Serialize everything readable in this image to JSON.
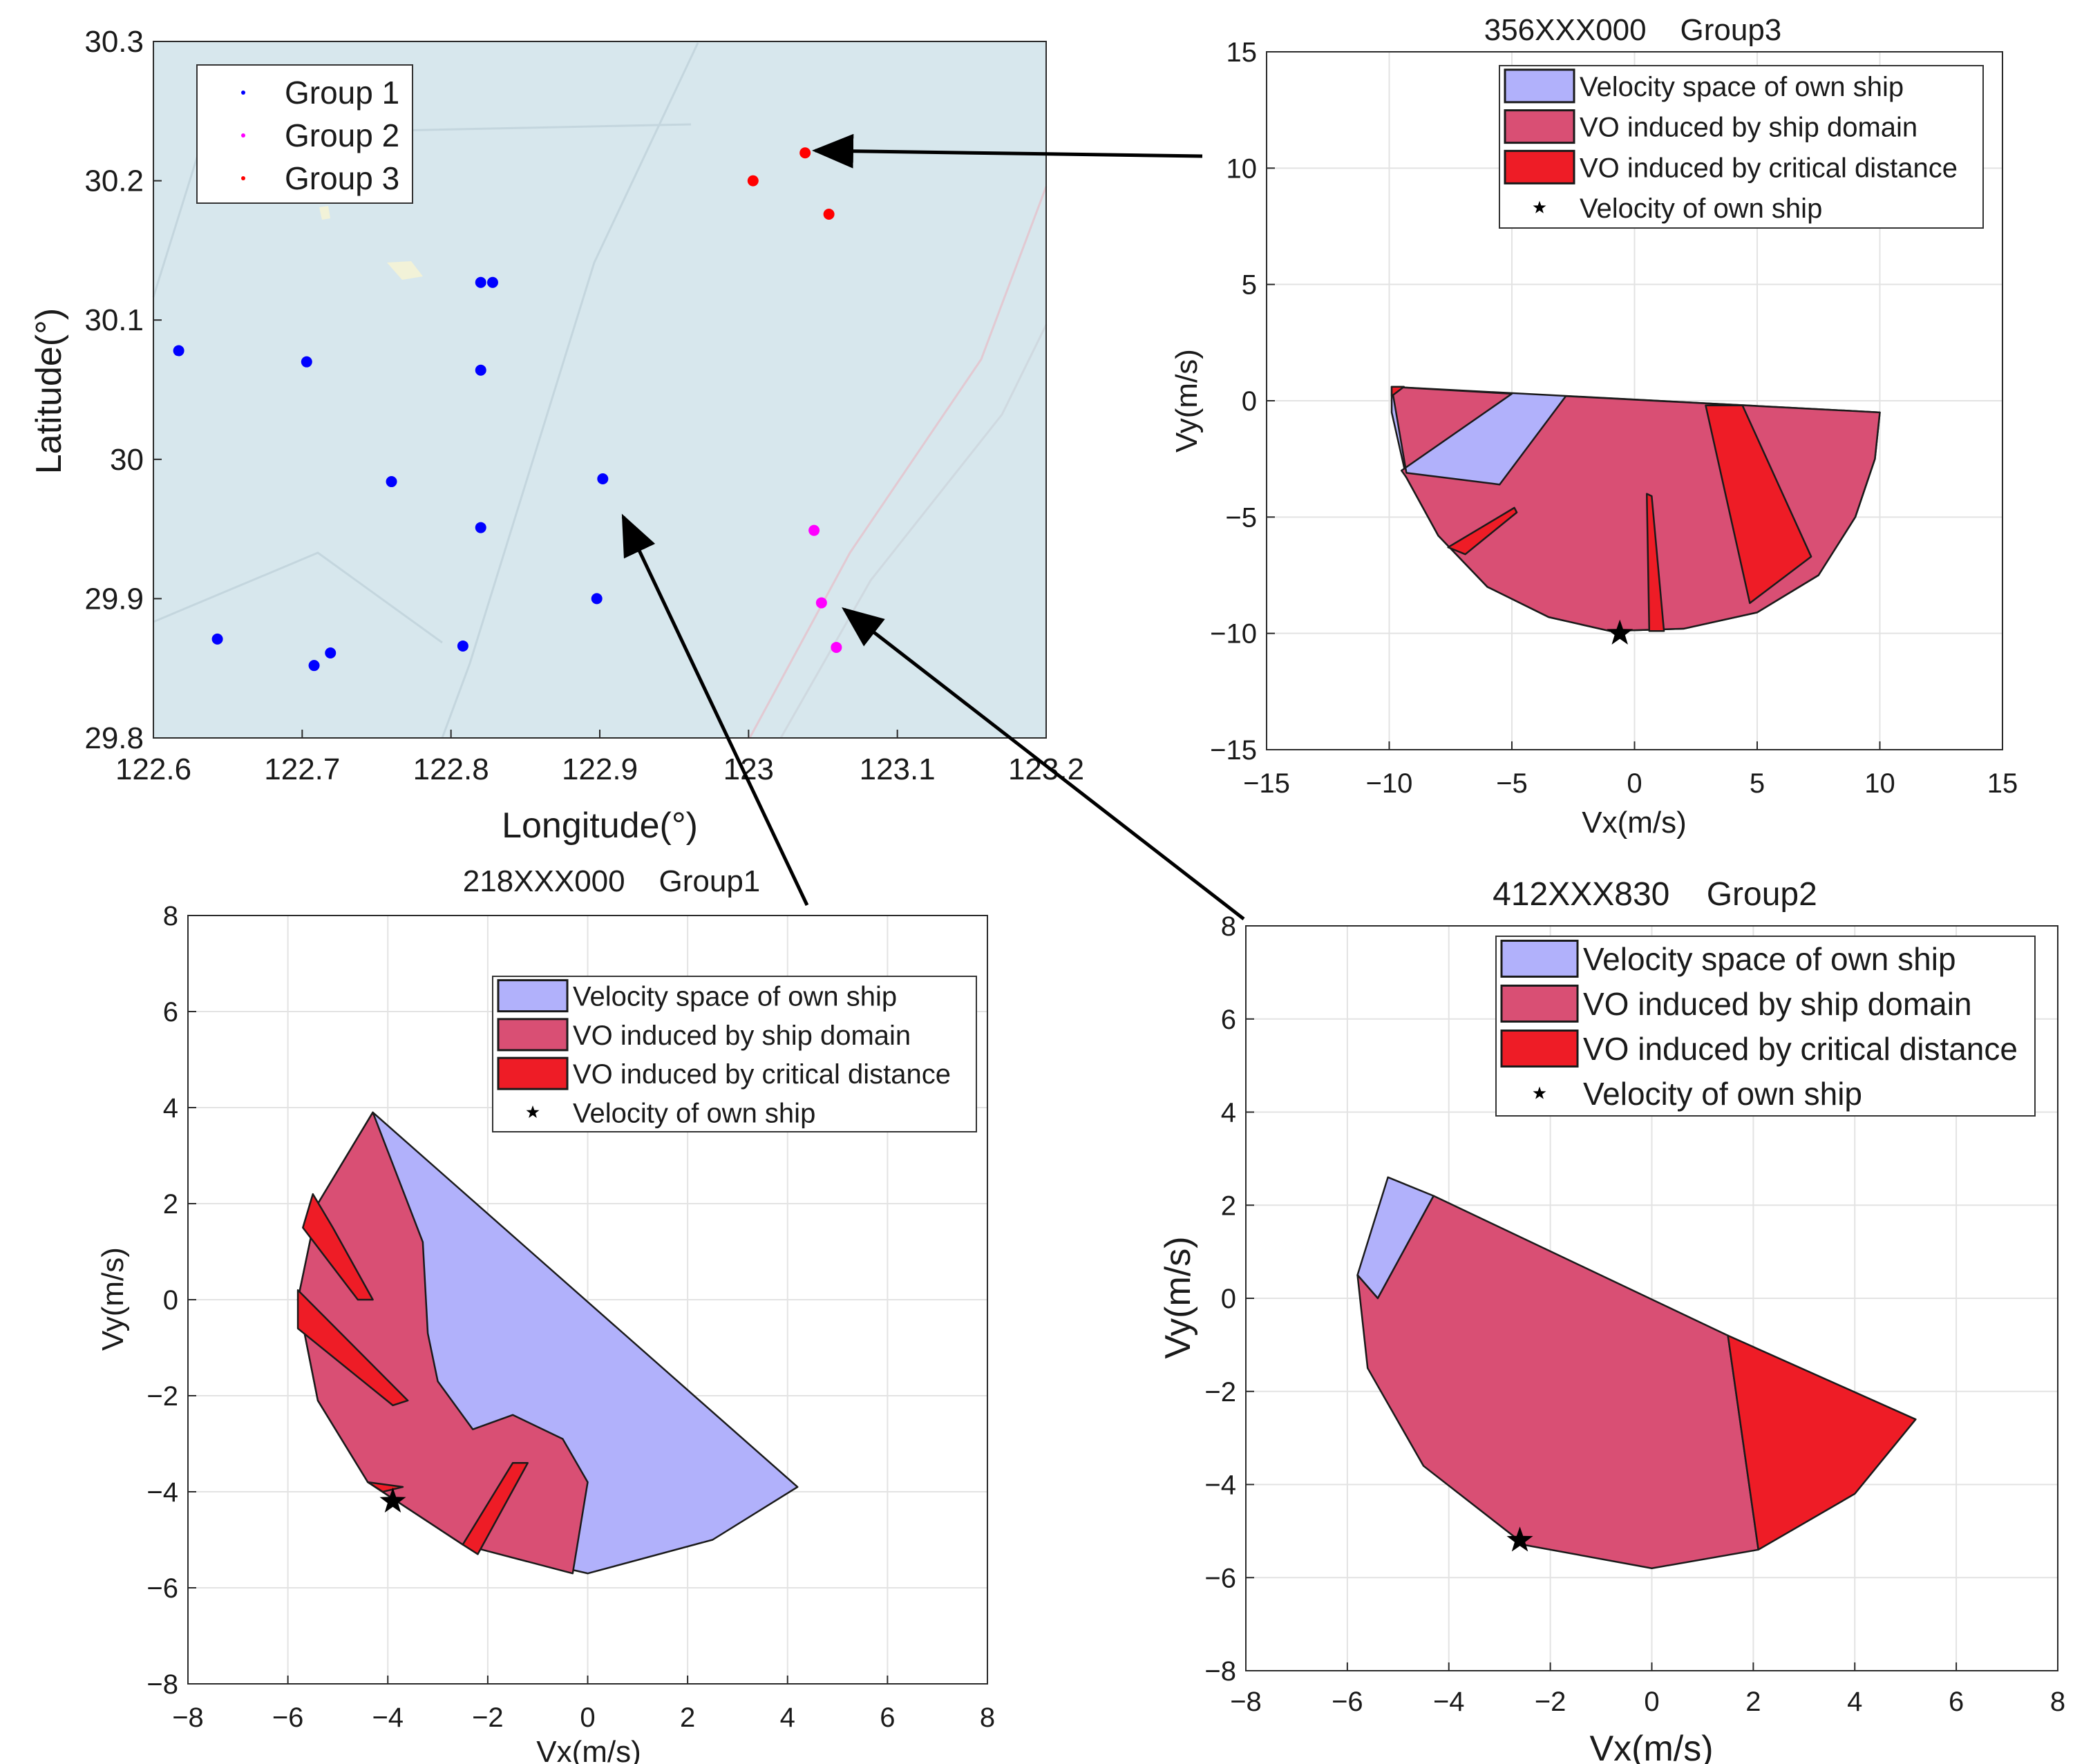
{
  "chart_data": [
    {
      "type": "scatter",
      "id": "map",
      "title": "",
      "xlabel": "Longitude(°)",
      "ylabel": "Latitude(°)",
      "xlim": [
        122.6,
        123.2
      ],
      "ylim": [
        29.8,
        30.3
      ],
      "xticks": [
        "122.6",
        "122.7",
        "122.8",
        "122.9",
        "123",
        "123.1",
        "123.2"
      ],
      "yticks": [
        "29.8",
        "29.9",
        "30",
        "30.1",
        "30.2",
        "30.3"
      ],
      "legend": {
        "position": "top-left"
      },
      "series": [
        {
          "name": "Group 1",
          "color": "#0000ff",
          "points": [
            [
              122.617,
              30.078
            ],
            [
              122.703,
              30.07
            ],
            [
              122.82,
              30.127
            ],
            [
              122.828,
              30.127
            ],
            [
              122.82,
              30.064
            ],
            [
              122.76,
              29.984
            ],
            [
              122.82,
              29.951
            ],
            [
              122.902,
              29.986
            ],
            [
              122.898,
              29.9
            ],
            [
              122.643,
              29.871
            ],
            [
              122.708,
              29.852
            ],
            [
              122.719,
              29.861
            ],
            [
              122.808,
              29.866
            ]
          ]
        },
        {
          "name": "Group 2",
          "color": "#ff00ff",
          "points": [
            [
              123.044,
              29.949
            ],
            [
              123.049,
              29.897
            ],
            [
              123.059,
              29.865
            ]
          ]
        },
        {
          "name": "Group 3",
          "color": "#ff0000",
          "points": [
            [
              123.038,
              30.22
            ],
            [
              123.003,
              30.2
            ],
            [
              123.054,
              30.176
            ]
          ]
        }
      ]
    },
    {
      "type": "area",
      "id": "group3",
      "title": "356XXX000    Group3",
      "xlabel": "Vx(m/s)",
      "ylabel": "Vy(m/s)",
      "xlim": [
        -15,
        15
      ],
      "ylim": [
        -15,
        15
      ],
      "xticks": [
        "−15",
        "−10",
        "−5",
        "0",
        "5",
        "10",
        "15"
      ],
      "yticks": [
        "−15",
        "−10",
        "−5",
        "0",
        "5",
        "10",
        "15"
      ],
      "legend": {
        "position": "top-right",
        "entries": [
          "Velocity space of own ship",
          "VO induced by ship domain",
          "VO induced by critical distance",
          "Velocity of own ship"
        ]
      },
      "regions": [
        {
          "name": "Velocity space of own ship",
          "color": "#b1b1fb",
          "polygons": [
            [
              [
                -9.9,
                0.6
              ],
              [
                10.0,
                -0.5
              ],
              [
                9.8,
                -2.5
              ],
              [
                9.0,
                -5.0
              ],
              [
                7.5,
                -7.5
              ],
              [
                5.0,
                -9.1
              ],
              [
                2.0,
                -9.8
              ],
              [
                -1.0,
                -9.9
              ],
              [
                -3.5,
                -9.3
              ],
              [
                -6.0,
                -8.0
              ],
              [
                -8.0,
                -5.8
              ],
              [
                -9.3,
                -3.3
              ],
              [
                -9.9,
                -0.5
              ]
            ]
          ]
        },
        {
          "name": "VO induced by ship domain",
          "color": "#d94f74",
          "polygons": [
            [
              [
                -9.9,
                0.6
              ],
              [
                -5.0,
                0.3
              ],
              [
                -9.5,
                -3.0
              ],
              [
                -9.3,
                -3.3
              ],
              [
                -8.0,
                -5.8
              ],
              [
                -6.0,
                -8.0
              ],
              [
                -3.5,
                -9.3
              ],
              [
                -1.0,
                -9.9
              ],
              [
                2.0,
                -9.8
              ],
              [
                5.0,
                -9.1
              ],
              [
                7.5,
                -7.5
              ],
              [
                9.0,
                -5.0
              ],
              [
                9.8,
                -2.5
              ],
              [
                10.0,
                -0.5
              ],
              [
                -2.8,
                0.2
              ],
              [
                -5.5,
                -3.6
              ],
              [
                -9.3,
                -3.1
              ]
            ]
          ]
        },
        {
          "name": "VO induced by critical distance",
          "color": "#ee1c26",
          "polygons": [
            [
              [
                2.9,
                -0.2
              ],
              [
                4.4,
                -0.2
              ],
              [
                7.2,
                -6.7
              ],
              [
                4.7,
                -8.7
              ]
            ],
            [
              [
                -7.6,
                -6.3
              ],
              [
                -6.9,
                -6.6
              ],
              [
                -4.8,
                -4.8
              ],
              [
                -4.9,
                -4.6
              ]
            ],
            [
              [
                0.5,
                -4.0
              ],
              [
                0.7,
                -4.1
              ],
              [
                1.2,
                -9.9
              ],
              [
                0.6,
                -9.9
              ]
            ],
            [
              [
                -9.9,
                0.6
              ],
              [
                -9.4,
                0.6
              ],
              [
                -9.9,
                0.2
              ]
            ]
          ]
        }
      ],
      "own_velocity": [
        -0.6,
        -10.0
      ]
    },
    {
      "type": "area",
      "id": "group1",
      "title": "218XXX000    Group1",
      "xlabel": "Vx(m/s)",
      "ylabel": "Vy(m/s)",
      "xlim": [
        -8,
        8
      ],
      "ylim": [
        -8,
        8
      ],
      "xticks": [
        "−8",
        "−6",
        "−4",
        "−2",
        "0",
        "2",
        "4",
        "6",
        "8"
      ],
      "yticks": [
        "−8",
        "−6",
        "−4",
        "−2",
        "0",
        "2",
        "4",
        "6",
        "8"
      ],
      "legend": {
        "position": "top-right",
        "entries": [
          "Velocity space of own ship",
          "VO induced by ship domain",
          "VO induced by critical distance",
          "Velocity of own ship"
        ]
      },
      "regions": [
        {
          "name": "Velocity space of own ship",
          "color": "#b1b1fb",
          "polygons": [
            [
              [
                -4.3,
                3.9
              ],
              [
                4.2,
                -3.9
              ],
              [
                2.5,
                -5.0
              ],
              [
                0.0,
                -5.7
              ],
              [
                -2.5,
                -5.1
              ],
              [
                -4.4,
                -3.8
              ],
              [
                -5.4,
                -2.1
              ],
              [
                -5.8,
                0.0
              ],
              [
                -5.4,
                2.0
              ]
            ]
          ]
        },
        {
          "name": "VO induced by ship domain",
          "color": "#d94f74",
          "polygons": [
            [
              [
                -4.3,
                3.9
              ],
              [
                -3.3,
                1.2
              ],
              [
                -3.2,
                -0.7
              ],
              [
                -3.0,
                -1.7
              ],
              [
                -2.3,
                -2.7
              ],
              [
                -1.5,
                -2.4
              ],
              [
                -0.5,
                -2.9
              ],
              [
                0.0,
                -3.8
              ],
              [
                -0.3,
                -5.7
              ],
              [
                -2.5,
                -5.1
              ],
              [
                -4.4,
                -3.8
              ],
              [
                -5.4,
                -2.1
              ],
              [
                -5.8,
                0.0
              ],
              [
                -5.4,
                2.0
              ]
            ]
          ]
        },
        {
          "name": "VO induced by critical distance",
          "color": "#ee1c26",
          "polygons": [
            [
              [
                -5.5,
                2.2
              ],
              [
                -5.1,
                1.5
              ],
              [
                -4.3,
                0.0
              ],
              [
                -4.6,
                0.0
              ],
              [
                -5.7,
                1.5
              ]
            ],
            [
              [
                -5.8,
                0.2
              ],
              [
                -3.6,
                -2.1
              ],
              [
                -3.9,
                -2.2
              ],
              [
                -5.8,
                -0.6
              ]
            ],
            [
              [
                -1.2,
                -3.4
              ],
              [
                -2.2,
                -5.3
              ],
              [
                -2.5,
                -5.1
              ],
              [
                -1.5,
                -3.4
              ]
            ],
            [
              [
                -4.4,
                -3.8
              ],
              [
                -3.7,
                -3.9
              ],
              [
                -4.1,
                -4.0
              ]
            ]
          ]
        }
      ],
      "own_velocity": [
        -3.9,
        -4.2
      ]
    },
    {
      "type": "area",
      "id": "group2",
      "title": "412XXX830    Group2",
      "xlabel": "Vx(m/s)",
      "ylabel": "Vy(m/s)",
      "xlim": [
        -8,
        8
      ],
      "ylim": [
        -8,
        8
      ],
      "xticks": [
        "−8",
        "−6",
        "−4",
        "−2",
        "0",
        "2",
        "4",
        "6",
        "8"
      ],
      "yticks": [
        "−8",
        "−6",
        "−4",
        "−2",
        "0",
        "2",
        "4",
        "6",
        "8"
      ],
      "legend": {
        "position": "top-right",
        "entries": [
          "Velocity space of own ship",
          "VO induced by ship domain",
          "VO induced by critical distance",
          "Velocity of own ship"
        ]
      },
      "regions": [
        {
          "name": "Velocity space of own ship",
          "color": "#b1b1fb",
          "polygons": [
            [
              [
                -5.2,
                2.6
              ],
              [
                -4.3,
                2.2
              ],
              [
                -5.4,
                0.0
              ],
              [
                -5.8,
                0.5
              ]
            ]
          ]
        },
        {
          "name": "VO induced by ship domain",
          "color": "#d94f74",
          "polygons": [
            [
              [
                -4.3,
                2.2
              ],
              [
                1.5,
                -0.8
              ],
              [
                2.1,
                -5.4
              ],
              [
                0.0,
                -5.8
              ],
              [
                -2.5,
                -5.3
              ],
              [
                -4.5,
                -3.6
              ],
              [
                -5.6,
                -1.5
              ],
              [
                -5.8,
                0.5
              ],
              [
                -5.4,
                0.0
              ]
            ]
          ]
        },
        {
          "name": "VO induced by critical distance",
          "color": "#ee1c26",
          "polygons": [
            [
              [
                1.5,
                -0.8
              ],
              [
                5.2,
                -2.6
              ],
              [
                4.0,
                -4.2
              ],
              [
                2.1,
                -5.4
              ]
            ]
          ]
        }
      ],
      "own_velocity": [
        -2.6,
        -5.2
      ]
    }
  ]
}
